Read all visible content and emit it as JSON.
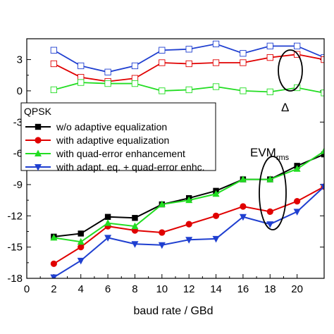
{
  "chart_data": {
    "type": "line",
    "xlabel": "baud rate / GBd",
    "xlim": [
      0,
      22
    ],
    "ylim": [
      -18,
      5
    ],
    "xticks": [
      0,
      2,
      4,
      6,
      8,
      10,
      12,
      14,
      16,
      18,
      20
    ],
    "yticks": [
      3,
      0,
      -3,
      -6,
      -9,
      -12,
      -15,
      -18
    ],
    "xtick_labels": [
      "0",
      "2",
      "4",
      "6",
      "8",
      "10",
      "12",
      "14",
      "16",
      "18",
      "20"
    ],
    "ytick_labels": [
      "3",
      "0",
      "-3",
      "-6",
      "-9",
      "-12",
      "-15",
      "-18"
    ],
    "grid": false,
    "legend_title": "QPSK",
    "legend_position": "center-left",
    "series": [
      {
        "name": "w/o adaptive equalization",
        "color": "#000000",
        "marker": "square",
        "x": [
          2,
          4,
          6,
          8,
          10,
          12,
          14,
          16,
          18,
          20,
          22
        ],
        "y": [
          -14.0,
          -13.7,
          -12.1,
          -12.2,
          -10.9,
          -10.3,
          -9.6,
          -8.5,
          -8.5,
          -7.2,
          -6.1
        ]
      },
      {
        "name": "with adaptive equalization",
        "color": "#e00000",
        "marker": "circle",
        "x": [
          2,
          4,
          6,
          8,
          10,
          12,
          14,
          16,
          18,
          20,
          22
        ],
        "y": [
          -16.6,
          -15.0,
          -13.0,
          -13.4,
          -13.6,
          -12.8,
          -12.0,
          -11.1,
          -11.6,
          -10.6,
          -9.2
        ]
      },
      {
        "name": "with quad-error enhancement",
        "color": "#22dd22",
        "marker": "triangle-up",
        "x": [
          2,
          4,
          6,
          8,
          10,
          12,
          14,
          16,
          18,
          20,
          22
        ],
        "y": [
          -14.1,
          -14.5,
          -12.7,
          -13.0,
          -10.9,
          -10.5,
          -9.9,
          -8.5,
          -8.5,
          -7.5,
          -5.8
        ]
      },
      {
        "name": "with adapt. eq. + quad-error enhc.",
        "color": "#1f3fd0",
        "marker": "triangle-down",
        "x": [
          2,
          4,
          6,
          8,
          10,
          12,
          14,
          16,
          18,
          20,
          22
        ],
        "y": [
          -17.9,
          -16.3,
          -14.1,
          -14.7,
          -14.8,
          -14.3,
          -14.2,
          -12.1,
          -12.8,
          -11.6,
          -9.2
        ]
      }
    ],
    "delta_series": [
      {
        "color": "#1f3fd0",
        "marker": "square-open",
        "x": [
          2,
          4,
          6,
          8,
          10,
          12,
          14,
          16,
          18,
          20,
          22
        ],
        "y": [
          3.9,
          2.4,
          1.8,
          2.4,
          3.9,
          4.0,
          4.5,
          3.6,
          4.3,
          4.3,
          3.2
        ]
      },
      {
        "color": "#e00000",
        "marker": "square-open",
        "x": [
          2,
          4,
          6,
          8,
          10,
          12,
          14,
          16,
          18,
          20,
          22
        ],
        "y": [
          2.6,
          1.3,
          0.9,
          1.2,
          2.7,
          2.6,
          2.7,
          2.7,
          3.2,
          3.5,
          3.0
        ]
      },
      {
        "color": "#22dd22",
        "marker": "square-open",
        "x": [
          2,
          4,
          6,
          8,
          10,
          12,
          14,
          16,
          18,
          20,
          22
        ],
        "y": [
          0.1,
          0.8,
          0.7,
          0.7,
          0.0,
          0.1,
          0.4,
          0.0,
          -0.1,
          0.3,
          -0.2
        ]
      }
    ],
    "annotations": {
      "evm_base": "EVM",
      "evm_sub": "rms",
      "delta": "Δ"
    }
  }
}
